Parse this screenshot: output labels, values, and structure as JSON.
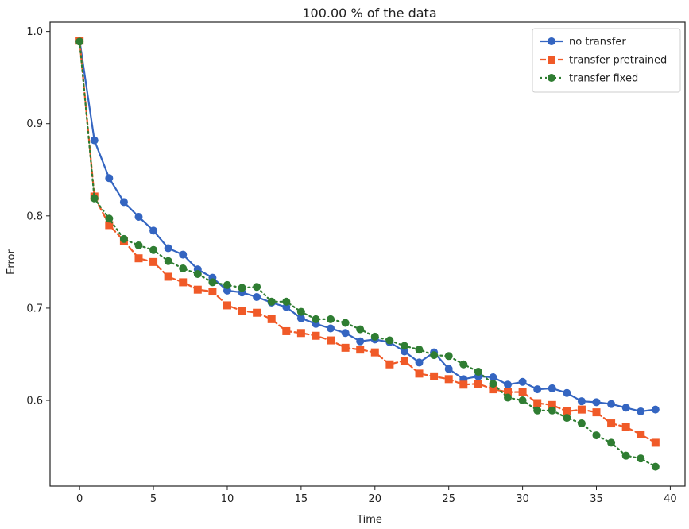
{
  "chart_data": {
    "type": "line",
    "title": "100.00 % of the data",
    "xlabel": "Time",
    "ylabel": "Error",
    "xlim": [
      -2,
      41
    ],
    "ylim": [
      0.507,
      1.01
    ],
    "xticks": [
      0,
      5,
      10,
      15,
      20,
      25,
      30,
      35,
      40
    ],
    "yticks": [
      0.6,
      0.7,
      0.8,
      0.9,
      1.0
    ],
    "xtick_labels": [
      "0",
      "5",
      "10",
      "15",
      "20",
      "25",
      "30",
      "35",
      "40"
    ],
    "ytick_labels": [
      "0.6",
      "0.7",
      "0.8",
      "0.9",
      "1.0"
    ],
    "grid": false,
    "legend_position": "top-right",
    "x": [
      0,
      1,
      2,
      3,
      4,
      5,
      6,
      7,
      8,
      9,
      10,
      11,
      12,
      13,
      14,
      15,
      16,
      17,
      18,
      19,
      20,
      21,
      22,
      23,
      24,
      25,
      26,
      27,
      28,
      29,
      30,
      31,
      32,
      33,
      34,
      35,
      36,
      37,
      38,
      39
    ],
    "series": [
      {
        "name": "no transfer",
        "color": "#3465c1",
        "marker": "circle",
        "linestyle": "solid",
        "values": [
          0.99,
          0.882,
          0.841,
          0.815,
          0.799,
          0.784,
          0.765,
          0.758,
          0.742,
          0.733,
          0.719,
          0.717,
          0.712,
          0.706,
          0.701,
          0.689,
          0.683,
          0.678,
          0.673,
          0.664,
          0.666,
          0.663,
          0.653,
          0.641,
          0.652,
          0.634,
          0.623,
          0.626,
          0.625,
          0.617,
          0.62,
          0.612,
          0.613,
          0.608,
          0.599,
          0.598,
          0.596,
          0.592,
          0.588,
          0.59
        ]
      },
      {
        "name": "transfer pretrained",
        "color": "#f05a28",
        "marker": "square",
        "linestyle": "dashed",
        "values": [
          0.99,
          0.821,
          0.79,
          0.773,
          0.754,
          0.75,
          0.734,
          0.728,
          0.72,
          0.718,
          0.703,
          0.697,
          0.695,
          0.688,
          0.675,
          0.673,
          0.67,
          0.665,
          0.657,
          0.655,
          0.652,
          0.639,
          0.643,
          0.629,
          0.626,
          0.623,
          0.617,
          0.618,
          0.612,
          0.609,
          0.609,
          0.597,
          0.595,
          0.588,
          0.59,
          0.587,
          0.575,
          0.571,
          0.563,
          0.554
        ]
      },
      {
        "name": "transfer fixed",
        "color": "#2f7d32",
        "marker": "circle",
        "linestyle": "dotted",
        "values": [
          0.989,
          0.819,
          0.797,
          0.775,
          0.768,
          0.763,
          0.751,
          0.743,
          0.737,
          0.728,
          0.725,
          0.722,
          0.723,
          0.707,
          0.707,
          0.696,
          0.688,
          0.688,
          0.684,
          0.677,
          0.669,
          0.665,
          0.659,
          0.655,
          0.649,
          0.648,
          0.639,
          0.631,
          0.618,
          0.603,
          0.6,
          0.589,
          0.589,
          0.581,
          0.575,
          0.562,
          0.554,
          0.54,
          0.537,
          0.528
        ]
      }
    ]
  }
}
